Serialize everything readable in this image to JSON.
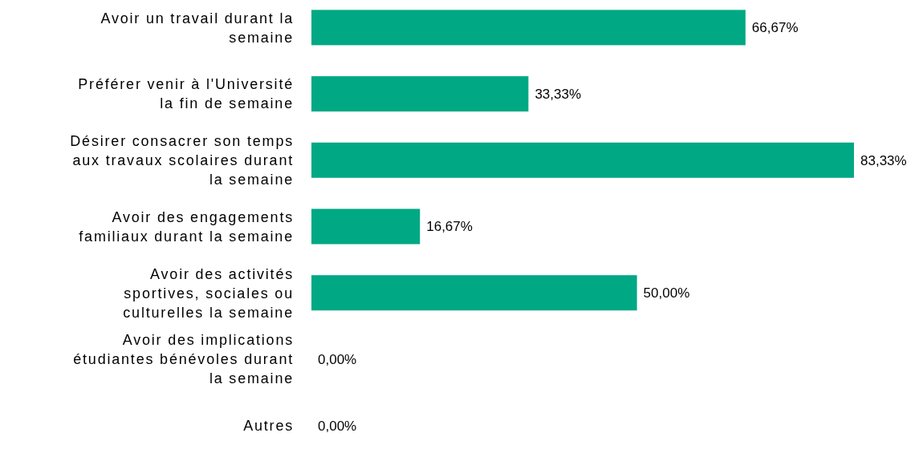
{
  "chart_data": {
    "type": "bar",
    "orientation": "horizontal",
    "categories": [
      "Avoir un travail durant la semaine",
      "Préférer venir à l'Université la fin de semaine",
      "Désirer consacrer son temps aux travaux scolaires durant la semaine",
      "Avoir des engagements familiaux durant la semaine",
      "Avoir des activités sportives, sociales ou culturelles la semaine",
      "Avoir des implications étudiantes bénévoles durant la semaine",
      "Autres"
    ],
    "values": [
      66.67,
      33.33,
      83.33,
      16.67,
      50.0,
      0,
      0
    ],
    "value_labels": [
      "66,67%",
      "33,33%",
      "83,33%",
      "16,67%",
      "50,00%",
      "0,00%",
      "0,00%"
    ],
    "color": "#00a884"
  }
}
